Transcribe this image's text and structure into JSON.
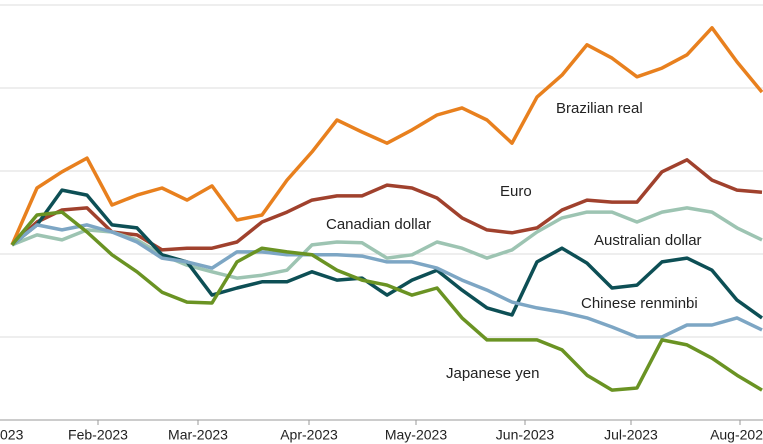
{
  "chart_data": {
    "type": "line",
    "categories": [
      null,
      null,
      null,
      null,
      null,
      null,
      null,
      null,
      null,
      null,
      null,
      null,
      null,
      null,
      null,
      null,
      null,
      null,
      null,
      null,
      null,
      null,
      null,
      null,
      null,
      null,
      null,
      null,
      null,
      null,
      null
    ],
    "xlim": [
      -0.48,
      30.04
    ],
    "xticks": [
      {
        "value": -0.96,
        "label": "023"
      },
      {
        "value": 3.44,
        "label": "Feb-2023"
      },
      {
        "value": 7.44,
        "label": "Mar-2023"
      },
      {
        "value": 11.88,
        "label": "Apr-2023"
      },
      {
        "value": 16.16,
        "label": "May-2023"
      },
      {
        "value": 20.52,
        "label": "Jun-2023"
      },
      {
        "value": 24.76,
        "label": "Jul-2023"
      },
      {
        "value": 29.12,
        "label": "Aug-202"
      }
    ],
    "ylim": [
      96,
      106
    ],
    "yticks": [
      96,
      98,
      100,
      102,
      104,
      106
    ],
    "grid": true,
    "series": [
      {
        "name": "Brazilian real",
        "color": "#e8801e",
        "values": [
          100.22,
          101.59,
          101.98,
          102.31,
          101.18,
          101.42,
          101.59,
          101.3,
          101.64,
          100.82,
          100.94,
          101.78,
          102.46,
          103.23,
          102.94,
          102.67,
          102.99,
          103.35,
          103.52,
          103.23,
          102.67,
          103.78,
          104.31,
          105.04,
          104.72,
          104.27,
          104.48,
          104.8,
          105.45,
          104.63,
          103.9
        ]
      },
      {
        "name": "Euro",
        "color": "#a0412d",
        "values": [
          100.22,
          100.77,
          101.06,
          101.11,
          100.53,
          100.46,
          100.1,
          100.14,
          100.14,
          100.29,
          100.77,
          101.01,
          101.3,
          101.4,
          101.4,
          101.66,
          101.59,
          101.35,
          100.87,
          100.58,
          100.51,
          100.63,
          101.06,
          101.3,
          101.25,
          101.25,
          101.98,
          102.27,
          101.78,
          101.54,
          101.49
        ]
      },
      {
        "name": "Canadian dollar",
        "color": "#9dc4b2",
        "values": [
          100.22,
          100.46,
          100.34,
          100.58,
          100.53,
          100.34,
          99.98,
          99.73,
          99.57,
          99.42,
          99.49,
          99.61,
          100.22,
          100.29,
          100.27,
          99.9,
          99.98,
          100.29,
          100.14,
          99.9,
          100.1,
          100.53,
          100.87,
          101.01,
          101.01,
          100.77,
          101.01,
          101.11,
          101.01,
          100.63,
          100.34
        ]
      },
      {
        "name": "Australian dollar",
        "color": "#0d4f55",
        "values": [
          100.22,
          100.7,
          101.54,
          101.42,
          100.7,
          100.63,
          99.98,
          99.81,
          99.01,
          99.18,
          99.33,
          99.33,
          99.57,
          99.37,
          99.42,
          99.01,
          99.37,
          99.61,
          99.13,
          98.7,
          98.53,
          99.81,
          100.14,
          99.78,
          99.18,
          99.25,
          99.81,
          99.9,
          99.61,
          98.89,
          98.46
        ]
      },
      {
        "name": "Chinese renminbi",
        "color": "#7da6c4",
        "values": [
          100.22,
          100.7,
          100.58,
          100.7,
          100.53,
          100.29,
          99.9,
          99.81,
          99.66,
          100.05,
          100.05,
          99.98,
          99.98,
          99.98,
          99.95,
          99.81,
          99.81,
          99.66,
          99.37,
          99.13,
          98.84,
          98.7,
          98.6,
          98.46,
          98.24,
          98.0,
          98.0,
          98.29,
          98.29,
          98.46,
          98.17
        ]
      },
      {
        "name": "Japanese yen",
        "color": "#6a9323",
        "values": [
          100.22,
          100.94,
          101.01,
          100.53,
          99.98,
          99.57,
          99.08,
          98.84,
          98.82,
          99.81,
          100.14,
          100.05,
          99.98,
          99.61,
          99.37,
          99.25,
          99.01,
          99.18,
          98.46,
          97.93,
          97.93,
          97.93,
          97.69,
          97.08,
          96.72,
          96.77,
          97.93,
          97.81,
          97.49,
          97.08,
          96.72
        ]
      }
    ]
  }
}
